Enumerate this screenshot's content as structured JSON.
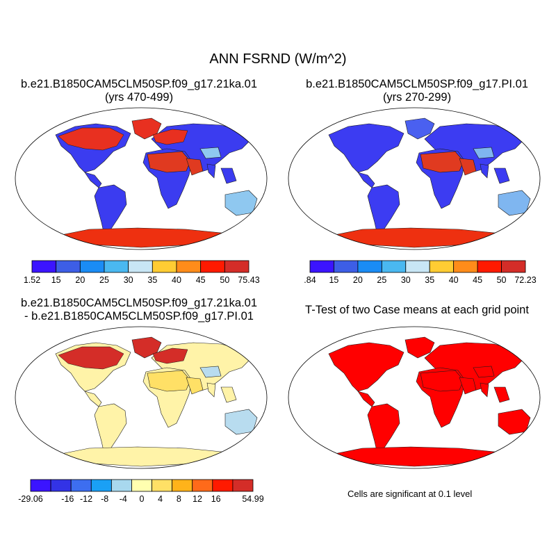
{
  "figure": {
    "title": "ANN FSRND (W/m^2)"
  },
  "panels": {
    "test_case": {
      "title_line1": "b.e21.B1850CAM5CLM50SP.f09_g17.21ka.01",
      "title_line2": "(yrs 470-499)",
      "colorbar": {
        "colors": [
          "#3b14ff",
          "#3d5ee6",
          "#1a8cf5",
          "#4ab8f0",
          "#c8e6f5",
          "#ffcc33",
          "#ff8c1a",
          "#ff1a00",
          "#d42d28"
        ],
        "ticks": [
          "1.52",
          "15",
          "20",
          "25",
          "30",
          "35",
          "40",
          "45",
          "50",
          "75.43"
        ]
      }
    },
    "control_case": {
      "title_line1": "b.e21.B1850CAM5CLM50SP.f09_g17.PI.01",
      "title_line2": "(yrs 270-299)",
      "colorbar": {
        "colors": [
          "#3b14ff",
          "#3d5ee6",
          "#1a8cf5",
          "#4ab8f0",
          "#c8e6f5",
          "#ffcc33",
          "#ff8c1a",
          "#ff1a00",
          "#d42d28"
        ],
        "ticks": [
          ".84",
          "15",
          "20",
          "25",
          "30",
          "35",
          "40",
          "45",
          "50",
          "72.23"
        ]
      }
    },
    "difference": {
      "title_line1": "b.e21.B1850CAM5CLM50SP.f09_g17.21ka.01",
      "title_line2": "- b.e21.B1850CAM5CLM50SP.f09_g17.PI.01",
      "colorbar": {
        "colors": [
          "#3b14ff",
          "#3333e6",
          "#3d6ef0",
          "#1aa0f5",
          "#a8d8ee",
          "#ffffb0",
          "#ffe066",
          "#ffb31a",
          "#ff6a1a",
          "#ff1a00",
          "#d42d28"
        ],
        "ticks": [
          "-29.06",
          "",
          "-16",
          "-12",
          "-8",
          "-4",
          "0",
          "4",
          "8",
          "12",
          "16",
          "",
          "54.99"
        ]
      }
    },
    "ttest": {
      "title": "T-Test of two Case means at each grid point",
      "note": "Cells are significant at 0.1 level"
    }
  },
  "map_fills": {
    "test_case": {
      "land": "#3b3cf0",
      "north": "#e83020",
      "desert": "#e03a20",
      "cold": "#8fc8f0",
      "ice": "#ee3010"
    },
    "control_case": {
      "land": "#3c3cf2",
      "north": "#4a60f0",
      "desert": "#e03a20",
      "cold": "#7fb6f0",
      "ice": "#ee3010"
    },
    "difference": {
      "land": "#fff3a8",
      "north": "#d42d28",
      "desert": "#ffe066",
      "cold": "#b8dcef",
      "ice": "#fff3a8"
    },
    "ttest": {
      "land": "#ff0000",
      "north": "#ff0000",
      "desert": "#ff0000",
      "cold": "#ff0000",
      "ice": "#ff0000"
    }
  }
}
